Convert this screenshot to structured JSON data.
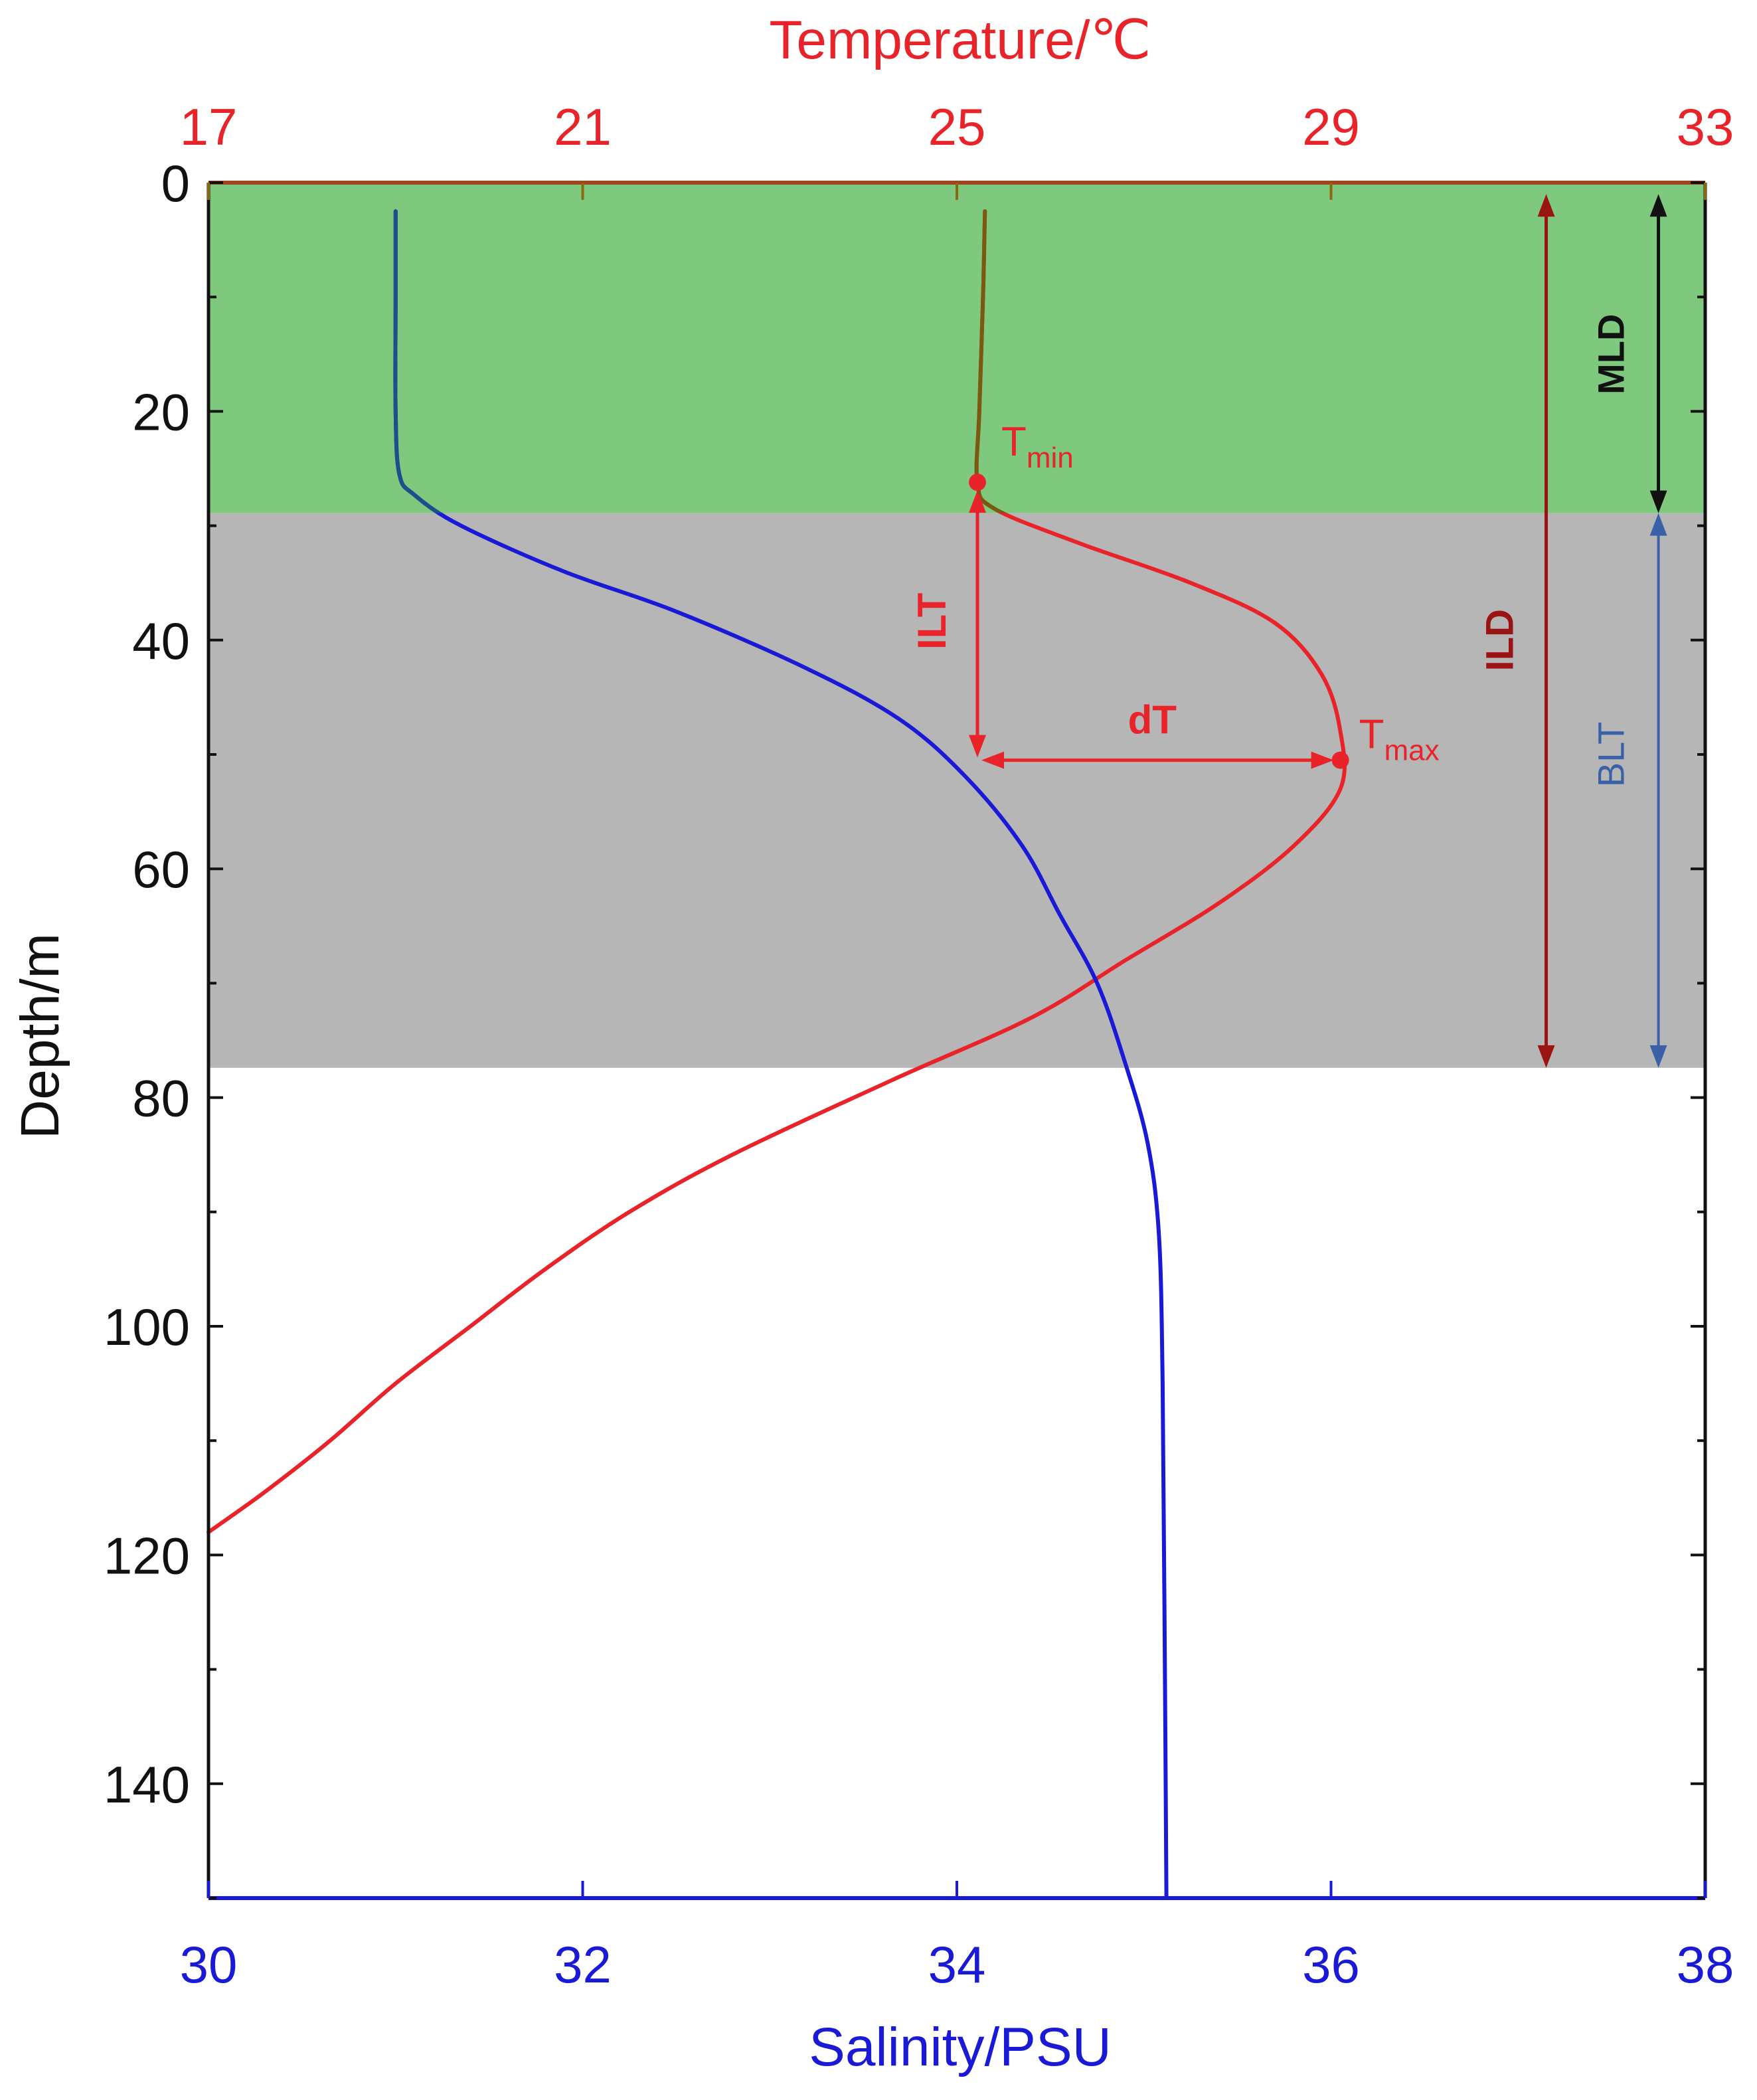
{
  "chart_data": {
    "type": "line",
    "orientation": "vertical-profile",
    "left_axis": {
      "label": "Depth/m",
      "range": [
        0,
        150
      ],
      "inverted": true,
      "ticks": [
        0,
        20,
        40,
        60,
        80,
        100,
        120,
        140
      ]
    },
    "top_axis": {
      "label": "Temperature/℃",
      "range": [
        17,
        33
      ],
      "ticks": [
        "17",
        "21",
        "25",
        "29",
        "33"
      ],
      "color": "#e8232a"
    },
    "bottom_axis": {
      "label": "Salinity/PSU",
      "range": [
        30,
        38
      ],
      "ticks": [
        "30",
        "32",
        "34",
        "36",
        "38"
      ],
      "color": "#1a1ad6"
    },
    "regions": [
      {
        "name": "mixed-layer",
        "depth_range": [
          0,
          28.9
        ],
        "color": "#7fc97f"
      },
      {
        "name": "barrier-layer",
        "depth_range": [
          28.9,
          77.4
        ],
        "color": "#b6b6b6"
      }
    ],
    "series": [
      {
        "key": "temperature",
        "axis": "top",
        "color": "#e8232a",
        "mixed_color": "#7a5a10",
        "points": [
          [
            25.3,
            2.5
          ],
          [
            25.28,
            10
          ],
          [
            25.24,
            20
          ],
          [
            25.22,
            26.2
          ],
          [
            25.4,
            28.5
          ],
          [
            26.3,
            31.5
          ],
          [
            27.5,
            35
          ],
          [
            28.4,
            38.5
          ],
          [
            28.9,
            43
          ],
          [
            29.1,
            48
          ],
          [
            29.1,
            53
          ],
          [
            28.6,
            58
          ],
          [
            27.8,
            63
          ],
          [
            26.8,
            68
          ],
          [
            25.8,
            73
          ],
          [
            24.3,
            78.5
          ],
          [
            22.6,
            85
          ],
          [
            21.5,
            90
          ],
          [
            20.6,
            95
          ],
          [
            19.8,
            100
          ],
          [
            19.0,
            105
          ],
          [
            18.3,
            110
          ],
          [
            17.6,
            114.5
          ],
          [
            17.0,
            118
          ]
        ]
      },
      {
        "key": "salinity",
        "axis": "bottom",
        "color": "#1a1ad6",
        "mixed_color": "#1d4f88",
        "points": [
          [
            31.0,
            2.5
          ],
          [
            31.0,
            10
          ],
          [
            31.0,
            20
          ],
          [
            31.02,
            25.5
          ],
          [
            31.1,
            27.3
          ],
          [
            31.35,
            30
          ],
          [
            31.9,
            34
          ],
          [
            32.5,
            37.5
          ],
          [
            33.2,
            42.5
          ],
          [
            33.7,
            47
          ],
          [
            34.05,
            52
          ],
          [
            34.35,
            58
          ],
          [
            34.55,
            64
          ],
          [
            34.75,
            70
          ],
          [
            34.9,
            77
          ],
          [
            35.02,
            84
          ],
          [
            35.08,
            92
          ],
          [
            35.1,
            105
          ],
          [
            35.11,
            125
          ],
          [
            35.12,
            150
          ]
        ]
      }
    ],
    "markers": [
      {
        "key": "tmin",
        "base": "T",
        "sub": "min",
        "temperature": 25.22,
        "depth": 26.2
      },
      {
        "key": "tmax",
        "base": "T",
        "sub": "max",
        "temperature": 29.1,
        "depth": 50.5
      }
    ],
    "annotations": [
      {
        "key": "ILT",
        "text": "ILT",
        "color": "#e8232a",
        "temperature": 25.22,
        "depth_range": [
          26.2,
          50.5
        ]
      },
      {
        "key": "dT",
        "text": "dT",
        "color": "#e8232a",
        "temperature_range": [
          25.22,
          29.1
        ],
        "depth": 50.5
      },
      {
        "key": "ILD",
        "text": "ILD",
        "color": "#9b1414",
        "temperature": 31.3,
        "depth_range": [
          1,
          77.4
        ]
      },
      {
        "key": "MLD",
        "text": "MLD",
        "color": "#111111",
        "temperature": 32.5,
        "depth_range": [
          1,
          28.9
        ]
      },
      {
        "key": "BLT",
        "text": "BLT",
        "color": "#3a60a8",
        "temperature": 32.5,
        "depth_range": [
          28.9,
          77.4
        ]
      }
    ]
  }
}
